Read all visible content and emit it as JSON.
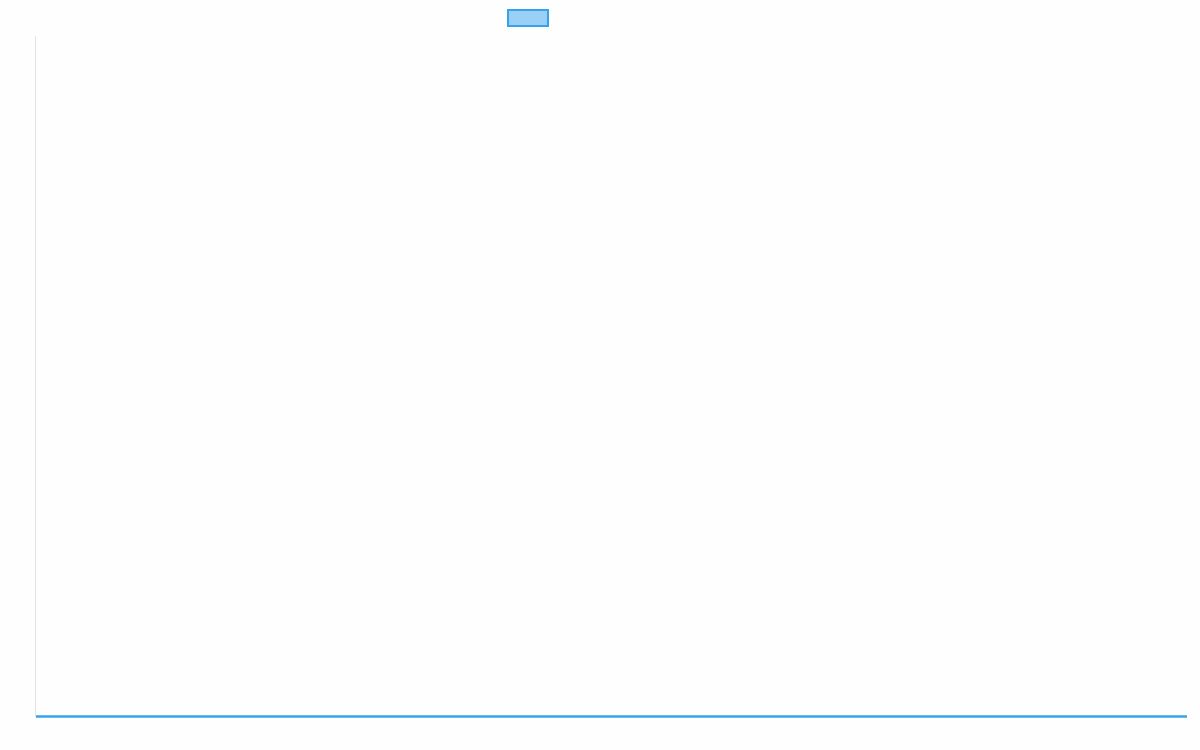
{
  "chart_data": {
    "type": "line",
    "title": "",
    "xlabel": "",
    "ylabel": "",
    "grid": false,
    "legend": {
      "placement": "top",
      "entries": [
        {
          "label": "",
          "color": "#36a2eb",
          "fill": "#9ad0f5"
        }
      ]
    },
    "series": [
      {
        "color": "#36a2eb",
        "values": []
      }
    ]
  }
}
